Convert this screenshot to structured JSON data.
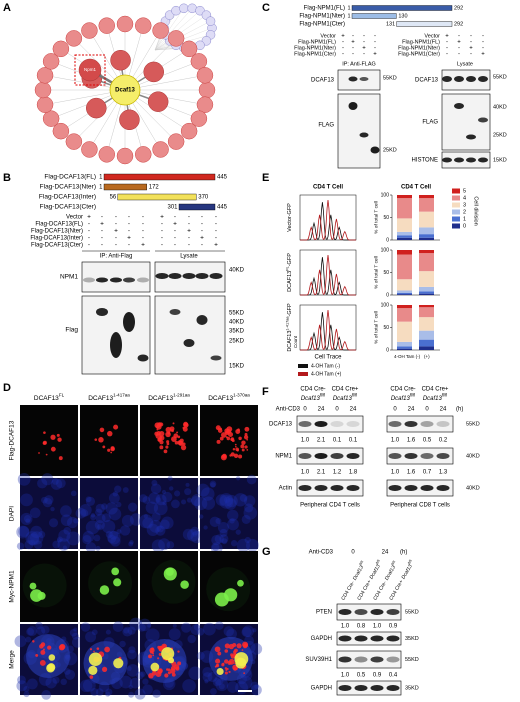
{
  "A": {
    "label": "A",
    "center": "Dcaf13",
    "highlight": "Npm1"
  },
  "B": {
    "label": "B",
    "constructs": [
      {
        "name": "Flag-DCAF13(FL)",
        "start": 1,
        "end": 445,
        "color": "#d0281f"
      },
      {
        "name": "Flag-DCAF13(Nter)",
        "start": 1,
        "end": 172,
        "color": "#b8691f"
      },
      {
        "name": "Flag-DCAF13(Inter)",
        "start": 56,
        "end": 370,
        "color": "#f2e15a"
      },
      {
        "name": "Flag-DCAF13(Cter)",
        "start": 301,
        "end": 445,
        "color": "#26367f"
      }
    ],
    "conditions": [
      "Vector",
      "Flag-DCAF13(FL)",
      "Flag-DCAF13(Nter)",
      "Flag-DCAF13(Inter)",
      "Flag-DCAF13(Cter)"
    ],
    "signs": [
      [
        "+",
        "-",
        "-",
        "-",
        "-",
        "+",
        "-",
        "-",
        "-",
        "-"
      ],
      [
        "-",
        "+",
        "-",
        "-",
        "-",
        "-",
        "+",
        "-",
        "-",
        "-"
      ],
      [
        "-",
        "-",
        "+",
        "-",
        "-",
        "-",
        "-",
        "+",
        "-",
        "-"
      ],
      [
        "-",
        "-",
        "-",
        "+",
        "-",
        "-",
        "-",
        "-",
        "+",
        "-"
      ],
      [
        "-",
        "-",
        "-",
        "-",
        "+",
        "-",
        "-",
        "-",
        "-",
        "+"
      ]
    ],
    "ip": "IP: Anti-Flag",
    "lysate": "Lysate",
    "blots": [
      "NPM1",
      "Flag"
    ],
    "markers": [
      "40KD",
      "55KD",
      "40KD",
      "35KD",
      "25KD",
      "15KD"
    ]
  },
  "C": {
    "label": "C",
    "constructs": [
      {
        "name": "Flag-NPM1(FL)",
        "start": 1,
        "end": 292,
        "color": "#3a5ca8"
      },
      {
        "name": "Flag-NPM1(Nter)",
        "start": 1,
        "end": 130,
        "color": "#9dbde6"
      },
      {
        "name": "Flag-NPM1(Cter)",
        "start": 131,
        "end": 292,
        "color": "#dfe8f6"
      }
    ],
    "conditions": [
      "Vector",
      "Flag-NPM1(FL)",
      "Flag-NPM1(Nter)",
      "Flag-NPM1(Cter)"
    ],
    "signs": [
      [
        "+",
        "-",
        "-",
        "-",
        "+",
        "-",
        "-",
        "-"
      ],
      [
        "-",
        "+",
        "-",
        "-",
        "-",
        "+",
        "-",
        "-"
      ],
      [
        "-",
        "-",
        "+",
        "-",
        "-",
        "-",
        "+",
        "-"
      ],
      [
        "-",
        "-",
        "-",
        "+",
        "-",
        "-",
        "-",
        "+"
      ]
    ],
    "ip": "IP: Anti-FLAG",
    "lysate": "Lysate",
    "ip_blots": [
      "DCAF13",
      "FLAG"
    ],
    "lysate_blots": [
      "DCAF13",
      "FLAG",
      "HISTONE"
    ],
    "ip_markers": [
      "55KD",
      "25KD"
    ],
    "lysate_markers": [
      "55KD",
      "40KD",
      "25KD",
      "15KD"
    ]
  },
  "D": {
    "label": "D",
    "columns": [
      {
        "base": "DCAF13",
        "sup": "FL"
      },
      {
        "base": "DCAF13",
        "sup": "1-417aa"
      },
      {
        "base": "DCAF13",
        "sup": "1-291aa"
      },
      {
        "base": "DCAF13",
        "sup": "1-370aa"
      }
    ],
    "rows": [
      "Flag-DCAF13",
      "DAPI",
      "Myc-NPM1",
      "Merge"
    ]
  },
  "E": {
    "label": "E",
    "title": "CD4 T Cell",
    "rows": [
      {
        "base": "Vector-GFP"
      },
      {
        "base": "DCAF13",
        "sup": "FL",
        "suffix": "-GFP"
      },
      {
        "base": "DCAF13",
        "sup": "1-417aa",
        "suffix": "-GFP"
      }
    ],
    "x_label": "Cell Trace",
    "y_count": "Count",
    "legend": [
      "4-OH Tam (-)",
      "4-OH Tam (+)"
    ],
    "legend_colors": [
      "#111111",
      "#b3191c"
    ],
    "bar_title": "CD4 T Cell",
    "y_label": "% of total T cell",
    "ylim": [
      0,
      100
    ],
    "yticks": [
      0,
      50,
      100
    ],
    "bar_labels": [
      "4-OH Tam (-)",
      "(+)"
    ],
    "divisions": {
      "name": "Cell division",
      "labels": [
        0,
        1,
        2,
        3,
        4,
        5
      ],
      "colors": [
        "#1f2e8c",
        "#4a6fd0",
        "#a9bde8",
        "#f6dcc0",
        "#e88a8a",
        "#d0201e"
      ]
    },
    "values": [
      [
        [
          5,
          5,
          8,
          30,
          45,
          7
        ],
        [
          5,
          8,
          15,
          35,
          30,
          7
        ]
      ],
      [
        [
          2,
          3,
          5,
          25,
          55,
          10
        ],
        [
          3,
          5,
          10,
          35,
          40,
          7
        ]
      ],
      [
        [
          3,
          5,
          10,
          45,
          30,
          7
        ],
        [
          8,
          15,
          20,
          30,
          22,
          5
        ]
      ]
    ]
  },
  "F": {
    "label": "F",
    "groups": [
      {
        "cre": "CD4 Cre-",
        "gene": "Dcaf13",
        "sup": "fl/fl"
      },
      {
        "cre": "CD4 Cre+",
        "gene": "Dcaf13",
        "sup": "fl/fl"
      },
      {
        "cre": "CD4 Cre-",
        "gene": "Dcaf13",
        "sup": "fl/fl"
      },
      {
        "cre": "CD4 Cre+",
        "gene": "Dcaf13",
        "sup": "fl/fl"
      }
    ],
    "treatment": "Anti-CD3",
    "times": [
      0,
      24,
      0,
      24,
      0,
      24,
      0,
      24
    ],
    "unit": "(h)",
    "blots": [
      "DCAF13",
      "NPM1",
      "Actin"
    ],
    "quant": [
      [
        "1.0",
        "2.1",
        "0.1",
        "0.1",
        "1.0",
        "1.6",
        "0.5",
        "0.2"
      ],
      [
        "1.0",
        "2.1",
        "1.2",
        "1.8",
        "1.0",
        "1.6",
        "0.7",
        "1.3"
      ]
    ],
    "markers": [
      "55KD",
      "40KD",
      "40KD"
    ],
    "footers": [
      "Peripheral CD4 T cells",
      "Peripheral CD8 T cells"
    ]
  },
  "G": {
    "label": "G",
    "treatment": "Anti-CD3",
    "times": [
      0,
      24
    ],
    "unit": "(h)",
    "lanes": [
      {
        "cre": "CD4 Cre-",
        "gene": "Dcaf13",
        "sup": "fl/fl"
      },
      {
        "cre": "CD4 Cre+",
        "gene": "Dcaf13",
        "sup": "fl/fl"
      },
      {
        "cre": "CD4 Cre-",
        "gene": "Dcaf13",
        "sup": "fl/fl"
      },
      {
        "cre": "CD4 Cre+",
        "gene": "Dcaf13",
        "sup": "fl/fl"
      }
    ],
    "blots": [
      "PTEN",
      "GAPDH",
      "SUV39H1",
      "GAPDH"
    ],
    "quant": [
      [
        "1.0",
        "0.8",
        "1.0",
        "0.9"
      ],
      [
        "1.0",
        "0.5",
        "0.9",
        "0.4"
      ]
    ],
    "markers": [
      "55KD",
      "35KD",
      "55KD",
      "35KD"
    ]
  }
}
